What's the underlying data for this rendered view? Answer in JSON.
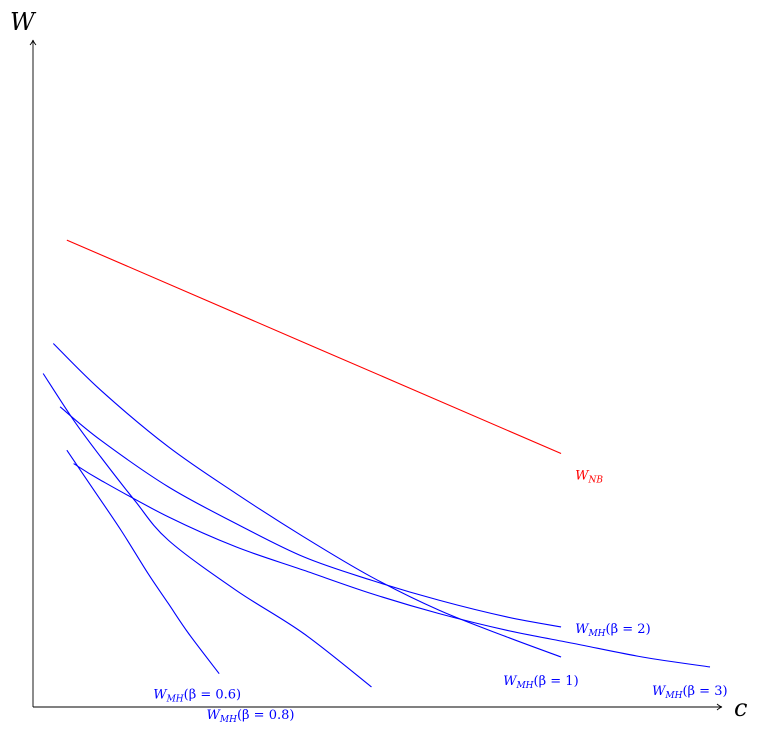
{
  "chart_data": {
    "type": "line",
    "title": "",
    "xlabel": "c",
    "ylabel": "W",
    "grid": false,
    "legend": "none",
    "xlim": [
      0,
      1
    ],
    "ylim": [
      0,
      1
    ],
    "series": [
      {
        "name": "W_NB",
        "label_main": "W",
        "label_sub": "NB",
        "label_rest": "",
        "color": "#ff0000",
        "points": [
          [
            0.05,
            0.7
          ],
          [
            0.78,
            0.38
          ]
        ]
      },
      {
        "name": "W_MH(β = 0.6)",
        "label_main": "W",
        "label_sub": "MH",
        "label_rest": "(β = 0.6)",
        "color": "#0000ff",
        "points": [
          [
            0.05,
            0.385
          ],
          [
            0.09,
            0.325
          ],
          [
            0.13,
            0.265
          ],
          [
            0.17,
            0.2
          ],
          [
            0.2,
            0.155
          ],
          [
            0.23,
            0.11
          ],
          [
            0.275,
            0.05
          ]
        ]
      },
      {
        "name": "W_MH(β = 0.8)",
        "label_main": "W",
        "label_sub": "MH",
        "label_rest": "(β = 0.8)",
        "color": "#0000ff",
        "points": [
          [
            0.015,
            0.5
          ],
          [
            0.06,
            0.43
          ],
          [
            0.1,
            0.375
          ],
          [
            0.15,
            0.31
          ],
          [
            0.2,
            0.25
          ],
          [
            0.3,
            0.175
          ],
          [
            0.4,
            0.11
          ],
          [
            0.5,
            0.03
          ]
        ]
      },
      {
        "name": "W_MH(β = 1)",
        "label_main": "W",
        "label_sub": "MH",
        "label_rest": "(β = 1)",
        "color": "#0000ff",
        "points": [
          [
            0.03,
            0.545
          ],
          [
            0.1,
            0.475
          ],
          [
            0.2,
            0.39
          ],
          [
            0.3,
            0.32
          ],
          [
            0.4,
            0.255
          ],
          [
            0.5,
            0.195
          ],
          [
            0.6,
            0.145
          ],
          [
            0.7,
            0.105
          ],
          [
            0.78,
            0.075
          ]
        ]
      },
      {
        "name": "W_MH(β = 2)",
        "label_main": "W",
        "label_sub": "MH",
        "label_rest": "(β = 2)",
        "color": "#0000ff",
        "points": [
          [
            0.04,
            0.45
          ],
          [
            0.1,
            0.4
          ],
          [
            0.2,
            0.33
          ],
          [
            0.3,
            0.275
          ],
          [
            0.4,
            0.225
          ],
          [
            0.5,
            0.19
          ],
          [
            0.6,
            0.16
          ],
          [
            0.7,
            0.135
          ],
          [
            0.78,
            0.12
          ]
        ]
      },
      {
        "name": "W_MH(β = 3)",
        "label_main": "W",
        "label_sub": "MH",
        "label_rest": "(β = 3)",
        "color": "#0000ff",
        "points": [
          [
            0.06,
            0.365
          ],
          [
            0.1,
            0.34
          ],
          [
            0.2,
            0.285
          ],
          [
            0.3,
            0.24
          ],
          [
            0.4,
            0.205
          ],
          [
            0.5,
            0.17
          ],
          [
            0.6,
            0.14
          ],
          [
            0.7,
            0.115
          ],
          [
            0.8,
            0.095
          ],
          [
            0.9,
            0.075
          ],
          [
            1.0,
            0.06
          ]
        ]
      }
    ]
  }
}
